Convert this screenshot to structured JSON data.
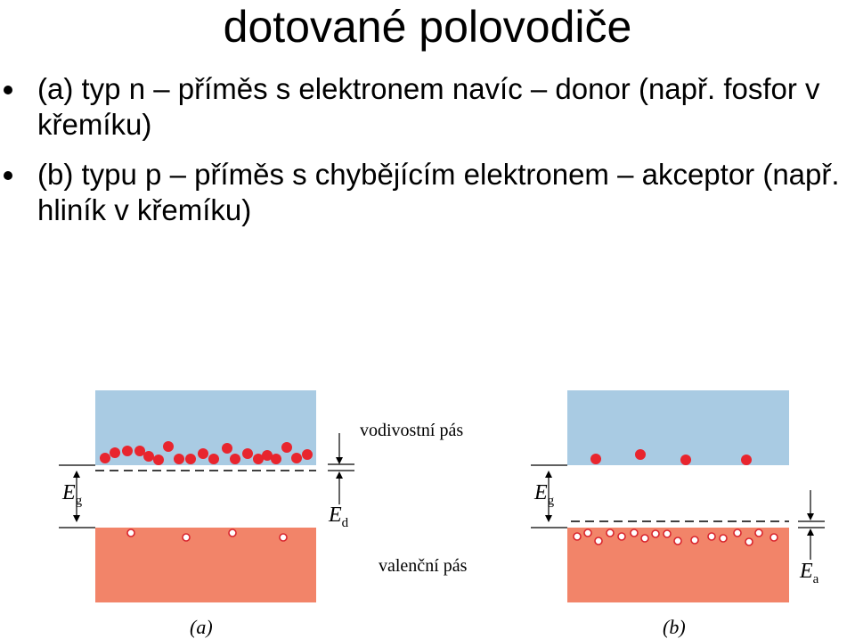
{
  "title": "dotované polovodiče",
  "bullets": [
    {
      "text": "(a) typ n – příměs s elektronem navíc – donor (např. fosfor v křemíku)"
    },
    {
      "text": "(b) typu p – příměs s chybějícím elektronem – akceptor (např. hliník v křemíku)"
    }
  ],
  "diagram": {
    "conduction_band_label": "vodivostní pás",
    "valence_band_label": "valenční pás",
    "gap_symbol": "E",
    "gap_subscript": "g",
    "donor_symbol": "E",
    "donor_subscript": "d",
    "acceptor_symbol": "E",
    "acceptor_subscript": "a",
    "panel_a_caption": "(a)",
    "panel_b_caption": "(b)",
    "colors": {
      "conduction_band": "#a9cbe3",
      "valence_band": "#f28469",
      "electron": "#e8252e",
      "hole_fill": "#ffffff",
      "hole_stroke": "#d9252e"
    }
  }
}
